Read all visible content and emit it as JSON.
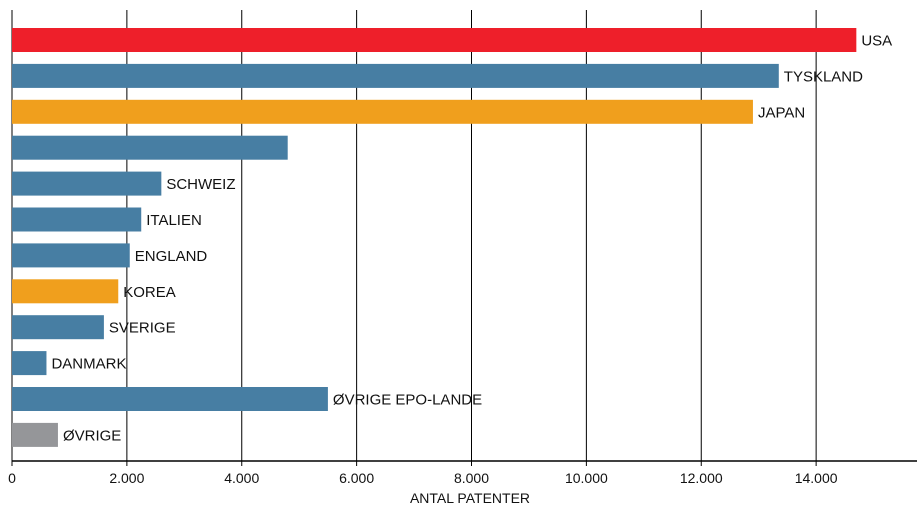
{
  "chart_data": {
    "type": "bar",
    "orientation": "horizontal",
    "title": "",
    "categories": [
      "USA",
      "TYSKLAND",
      "JAPAN",
      "",
      "SCHWEIZ",
      "ITALIEN",
      "ENGLAND",
      "KOREA",
      "SVERIGE",
      "DANMARK",
      "ØVRIGE EPO-LANDE",
      "ØVRIGE"
    ],
    "values": [
      14700,
      13350,
      12900,
      4800,
      2600,
      2250,
      2050,
      1850,
      1600,
      600,
      5500,
      800
    ],
    "bar_colors": [
      "#ee1f2a",
      "#477ea3",
      "#f09f1d",
      "#477ea3",
      "#477ea3",
      "#477ea3",
      "#477ea3",
      "#f09f1d",
      "#477ea3",
      "#477ea3",
      "#477ea3",
      "#959699"
    ],
    "xlabel": "ANTAL PATENTER",
    "ylabel": "",
    "xlim": [
      0,
      16000
    ],
    "x_ticks": [
      "0",
      "2.000",
      "4.000",
      "6.000",
      "8.000",
      "10.000",
      "12.000",
      "14.000"
    ],
    "grid": "vertical",
    "legend": "none"
  }
}
